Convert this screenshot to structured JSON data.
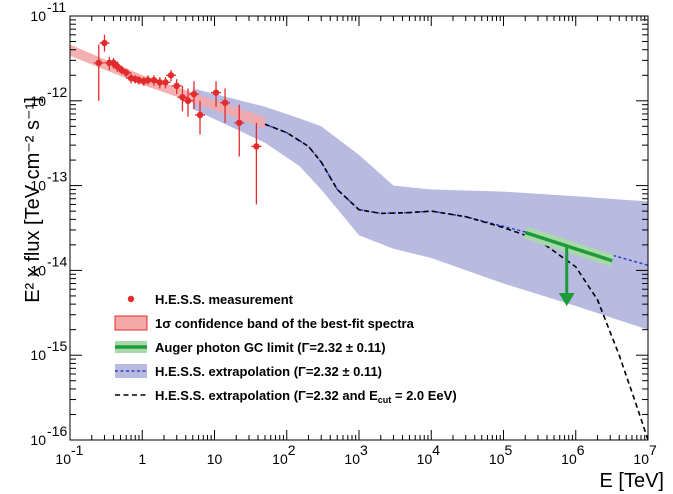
{
  "chart_data": {
    "type": "scatter",
    "xscale": "log",
    "yscale": "log",
    "xlim": [
      0.1,
      10000000
    ],
    "ylim": [
      1e-16,
      1e-11
    ],
    "xlabel": "E [TeV]",
    "ylabel": "E² x flux [TeV cm⁻² s⁻¹]",
    "x_ticks": [
      {
        "v": 0.1,
        "base": "10",
        "exp": "-1"
      },
      {
        "v": 1,
        "base": "1",
        "exp": ""
      },
      {
        "v": 10,
        "base": "10",
        "exp": ""
      },
      {
        "v": 100,
        "base": "10",
        "exp": "2"
      },
      {
        "v": 1000,
        "base": "10",
        "exp": "3"
      },
      {
        "v": 10000,
        "base": "10",
        "exp": "4"
      },
      {
        "v": 100000,
        "base": "10",
        "exp": "5"
      },
      {
        "v": 1000000,
        "base": "10",
        "exp": "6"
      },
      {
        "v": 10000000,
        "base": "10",
        "exp": "7"
      }
    ],
    "y_ticks": [
      {
        "v": 1e-16,
        "base": "10",
        "exp": "-16"
      },
      {
        "v": 1e-15,
        "base": "10",
        "exp": "-15"
      },
      {
        "v": 1e-14,
        "base": "10",
        "exp": "-14"
      },
      {
        "v": 1e-13,
        "base": "10",
        "exp": "-13"
      },
      {
        "v": 1e-12,
        "base": "10",
        "exp": "-12"
      },
      {
        "v": 1e-11,
        "base": "10",
        "exp": "-11"
      }
    ],
    "series": [
      {
        "name": "H.E.S.S. measurement",
        "kind": "points",
        "color": "#e32b2b",
        "points": [
          {
            "x": 0.25,
            "y": 2.8e-12,
            "ylo": 1e-12,
            "yhi": 4.6e-12
          },
          {
            "x": 0.3,
            "y": 4.8e-12,
            "ylo": 3.8e-12,
            "yhi": 6e-12
          },
          {
            "x": 0.35,
            "y": 2.8e-12,
            "ylo": 2.3e-12,
            "yhi": 3.3e-12
          },
          {
            "x": 0.4,
            "y": 2.8e-12,
            "ylo": 2.4e-12,
            "yhi": 3.2e-12
          },
          {
            "x": 0.45,
            "y": 2.55e-12,
            "ylo": 2.2e-12,
            "yhi": 2.9e-12
          },
          {
            "x": 0.52,
            "y": 2.3e-12,
            "ylo": 2.05e-12,
            "yhi": 2.6e-12
          },
          {
            "x": 0.6,
            "y": 2.15e-12,
            "ylo": 1.9e-12,
            "yhi": 2.4e-12
          },
          {
            "x": 0.7,
            "y": 1.85e-12,
            "ylo": 1.6e-12,
            "yhi": 2.1e-12
          },
          {
            "x": 0.8,
            "y": 1.8e-12,
            "ylo": 1.6e-12,
            "yhi": 2e-12
          },
          {
            "x": 0.9,
            "y": 1.75e-12,
            "ylo": 1.55e-12,
            "yhi": 1.95e-12
          },
          {
            "x": 1.05,
            "y": 1.7e-12,
            "ylo": 1.5e-12,
            "yhi": 1.9e-12
          },
          {
            "x": 1.2,
            "y": 1.75e-12,
            "ylo": 1.55e-12,
            "yhi": 2e-12
          },
          {
            "x": 1.45,
            "y": 1.75e-12,
            "ylo": 1.5e-12,
            "yhi": 2e-12
          },
          {
            "x": 1.75,
            "y": 1.65e-12,
            "ylo": 1.4e-12,
            "yhi": 1.9e-12
          },
          {
            "x": 2.1,
            "y": 1.65e-12,
            "ylo": 1.4e-12,
            "yhi": 1.9e-12
          },
          {
            "x": 2.5,
            "y": 2e-12,
            "ylo": 1.7e-12,
            "yhi": 2.3e-12
          },
          {
            "x": 3.0,
            "y": 1.5e-12,
            "ylo": 1.2e-12,
            "yhi": 1.8e-12
          },
          {
            "x": 3.6,
            "y": 1.1e-12,
            "ylo": 7.5e-13,
            "yhi": 1.5e-12
          },
          {
            "x": 4.3,
            "y": 1e-12,
            "ylo": 6.5e-13,
            "yhi": 1.4e-12
          },
          {
            "x": 5.2,
            "y": 1.2e-12,
            "ylo": 8e-13,
            "yhi": 1.7e-12
          },
          {
            "x": 6.3,
            "y": 6.8e-13,
            "ylo": 4e-13,
            "yhi": 1e-12
          },
          {
            "x": 10.5,
            "y": 1.25e-12,
            "ylo": 8.5e-13,
            "yhi": 1.7e-12
          },
          {
            "x": 14,
            "y": 9.5e-13,
            "ylo": 5.5e-13,
            "yhi": 1.4e-12
          },
          {
            "x": 22,
            "y": 5.5e-13,
            "ylo": 2.2e-13,
            "yhi": 9e-13
          },
          {
            "x": 38,
            "y": 2.9e-13,
            "ylo": 6e-14,
            "yhi": 5.5e-13
          }
        ]
      },
      {
        "name": "1σ confidence band of the best-fit spectra",
        "kind": "band",
        "color": "#f4a9a9",
        "lower": [
          {
            "x": 0.1,
            "y": 3.4e-12
          },
          {
            "x": 1,
            "y": 1.55e-12
          },
          {
            "x": 10,
            "y": 7.8e-13
          },
          {
            "x": 50,
            "y": 4.7e-13
          }
        ],
        "upper": [
          {
            "x": 0.1,
            "y": 4.6e-12
          },
          {
            "x": 1,
            "y": 2e-12
          },
          {
            "x": 10,
            "y": 1.02e-12
          },
          {
            "x": 50,
            "y": 6.4e-13
          }
        ]
      },
      {
        "name": "H.E.S.S. extrapolation (Γ=2.32 ± 0.11)",
        "kind": "band+line",
        "color": "#2b3fc4",
        "band_color": "#b8bae0",
        "lower": [
          {
            "x": 5,
            "y": 8e-13
          },
          {
            "x": 50,
            "y": 3.2e-13
          },
          {
            "x": 150,
            "y": 1.7e-13
          },
          {
            "x": 300,
            "y": 9e-14
          },
          {
            "x": 1000,
            "y": 2.6e-14
          },
          {
            "x": 3000,
            "y": 1.8e-14
          },
          {
            "x": 10000,
            "y": 1.4e-14
          },
          {
            "x": 100000,
            "y": 7e-15
          },
          {
            "x": 1000000,
            "y": 3.8e-15
          },
          {
            "x": 10000000,
            "y": 2e-15
          }
        ],
        "upper": [
          {
            "x": 5,
            "y": 1.4e-12
          },
          {
            "x": 50,
            "y": 8.5e-13
          },
          {
            "x": 150,
            "y": 6.2e-13
          },
          {
            "x": 300,
            "y": 5e-13
          },
          {
            "x": 1000,
            "y": 2.3e-13
          },
          {
            "x": 3000,
            "y": 1e-13
          },
          {
            "x": 10000,
            "y": 9e-14
          },
          {
            "x": 100000,
            "y": 8.5e-14
          },
          {
            "x": 1000000,
            "y": 7.5e-14
          },
          {
            "x": 10000000,
            "y": 6.5e-14
          }
        ],
        "line": [
          {
            "x": 50,
            "y": 5.3e-13
          },
          {
            "x": 100,
            "y": 4.2e-13
          },
          {
            "x": 200,
            "y": 2.9e-13
          },
          {
            "x": 300,
            "y": 1.9e-13
          },
          {
            "x": 500,
            "y": 9e-14
          },
          {
            "x": 1000,
            "y": 5.2e-14
          },
          {
            "x": 2000,
            "y": 4.7e-14
          },
          {
            "x": 5000,
            "y": 4.8e-14
          },
          {
            "x": 10000,
            "y": 5e-14
          },
          {
            "x": 30000,
            "y": 4.3e-14
          },
          {
            "x": 100000,
            "y": 3.3e-14
          },
          {
            "x": 1000000,
            "y": 2e-14
          },
          {
            "x": 10000000,
            "y": 1.15e-14
          }
        ]
      },
      {
        "name": "H.E.S.S. extrapolation (Γ=2.32 and Ecut = 2.0 EeV)",
        "kind": "line",
        "color": "#000000",
        "line": [
          {
            "x": 50,
            "y": 5.3e-13
          },
          {
            "x": 100,
            "y": 4.2e-13
          },
          {
            "x": 200,
            "y": 2.9e-13
          },
          {
            "x": 300,
            "y": 1.9e-13
          },
          {
            "x": 500,
            "y": 9e-14
          },
          {
            "x": 1000,
            "y": 5.2e-14
          },
          {
            "x": 2000,
            "y": 4.7e-14
          },
          {
            "x": 5000,
            "y": 4.8e-14
          },
          {
            "x": 10000,
            "y": 5e-14
          },
          {
            "x": 30000,
            "y": 4.3e-14
          },
          {
            "x": 100000,
            "y": 3.2e-14
          },
          {
            "x": 300000,
            "y": 2.3e-14
          },
          {
            "x": 1000000,
            "y": 1.1e-14
          },
          {
            "x": 2000000,
            "y": 4.5e-15
          },
          {
            "x": 4000000,
            "y": 1e-15
          },
          {
            "x": 7000000,
            "y": 2.5e-16
          },
          {
            "x": 10000000,
            "y": 1e-16
          }
        ]
      },
      {
        "name": "Auger photon GC limit (Γ=2.32 ± 0.11)",
        "kind": "limit",
        "color": "#1d9a3a",
        "band_color": "#a9d9a9",
        "line": [
          {
            "x": 200000,
            "y": 2.8e-14
          },
          {
            "x": 3200000,
            "y": 1.3e-14
          }
        ],
        "arrow": {
          "x": 750000,
          "y_from": 1.9e-14,
          "y_to": 3.8e-15
        }
      }
    ],
    "legend": {
      "position": "bottom-left",
      "entries": [
        {
          "label": "H.E.S.S. measurement",
          "symbol": "point",
          "color": "#e32b2b"
        },
        {
          "label": "1σ confidence band of the best-fit spectra",
          "symbol": "box",
          "color": "#f4a9a9",
          "edge": "#e32b2b"
        },
        {
          "label": "Auger photon GC limit (Γ=2.32 ± 0.11)",
          "symbol": "band-line",
          "color": "#1d9a3a",
          "band_color": "#a9d9a9"
        },
        {
          "label": "H.E.S.S. extrapolation (Γ=2.32 ± 0.11)",
          "symbol": "band-dashed",
          "color": "#2b3fc4",
          "band_color": "#b8bae0"
        },
        {
          "label_pre": "H.E.S.S. extrapolation (Γ=2.32 and E",
          "label_sub": "cut",
          "label_post": " = 2.0 EeV)",
          "symbol": "dashed",
          "color": "#000000"
        }
      ]
    }
  }
}
